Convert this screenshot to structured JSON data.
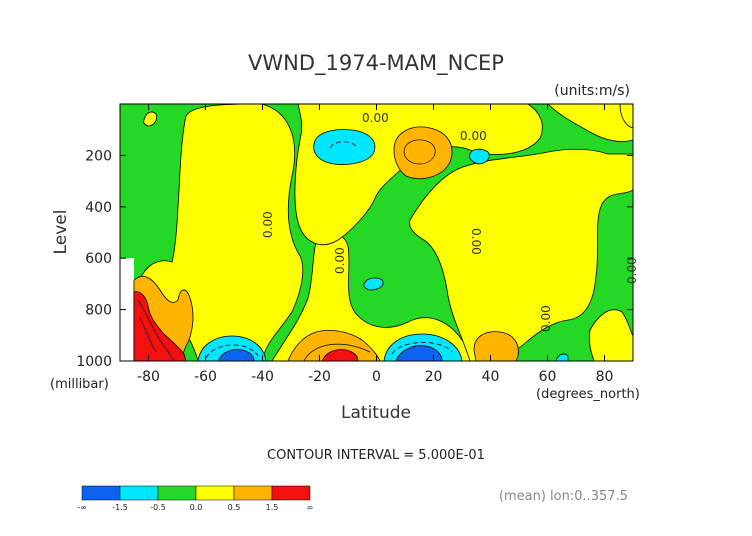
{
  "chart_data": {
    "type": "contour",
    "title": "VWND_1974-MAM_NCEP",
    "units": "(units:m/s)",
    "xlabel": "Latitude",
    "ylabel": "Level",
    "xunit_label": "(degrees_north)",
    "yunit_label": "(millibar)",
    "xlim": [
      -90,
      90
    ],
    "ylim": [
      1000,
      0
    ],
    "xticks": [
      -80,
      -60,
      -40,
      -20,
      0,
      20,
      40,
      60,
      80
    ],
    "yticks": [
      200,
      400,
      600,
      800,
      1000
    ],
    "contour_interval_text": "CONTOUR INTERVAL = 5.000E-01",
    "zero_contour_label": "0.00",
    "footer_note": "(mean) lon:0..357.5",
    "colorbar": {
      "tick_labels": [
        "-∞",
        "-1.5",
        "-0.5",
        "0.0",
        "0.5",
        "1.5",
        "∞"
      ],
      "colors": [
        "#0a64f0",
        "#00e6ff",
        "#25d825",
        "#ffff00",
        "#ffb400",
        "#f51010"
      ]
    },
    "level_colors": {
      "lt_-1.5": "#0a64f0",
      "-1.5_to_-0.5": "#00e6ff",
      "-0.5_to_0": "#25d825",
      "0_to_0.5": "#ffff00",
      "0.5_to_1.5": "#ffb400",
      "gt_1.5": "#f51010"
    }
  }
}
